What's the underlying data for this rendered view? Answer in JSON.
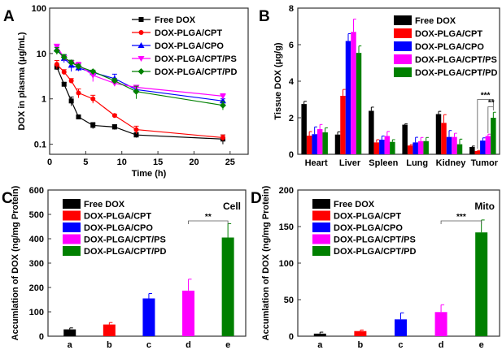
{
  "colors": {
    "Free DOX": "#000000",
    "DOX-PLGA/CPT": "#ff0000",
    "DOX-PLGA/CPO": "#0000ff",
    "DOX-PLGA/CPT/PS": "#ff00ff",
    "DOX-PLGA/CPT/PD": "#008000"
  },
  "chart_data": [
    {
      "panel": "A",
      "type": "line",
      "xlabel": "Time (h)",
      "ylabel": "DOX in plasma (μg/mL)",
      "yscale": "log",
      "xlim": [
        0,
        27.5
      ],
      "ylim": [
        0.06,
        100
      ],
      "xticks": [
        0,
        5,
        10,
        15,
        20,
        25
      ],
      "yticks": [
        0.1,
        1,
        10,
        100
      ],
      "ytick_labels": [
        "0.1",
        "1",
        "10",
        "100"
      ],
      "legend": "top-right",
      "x": [
        1,
        2,
        3,
        4,
        6,
        9,
        12,
        24
      ],
      "series": [
        {
          "name": "Free DOX",
          "marker": "square",
          "values": [
            5.0,
            2.1,
            0.9,
            0.4,
            0.26,
            0.24,
            0.16,
            0.13
          ],
          "err": [
            0.6,
            0.2,
            0.2,
            0.03,
            0.04,
            0.03,
            0.02,
            0.03
          ]
        },
        {
          "name": "DOX-PLGA/CPT",
          "marker": "circle",
          "values": [
            5.8,
            3.9,
            2.5,
            1.35,
            1.0,
            0.43,
            0.21,
            0.14
          ],
          "err": [
            1.2,
            0.5,
            0.3,
            0.3,
            0.2,
            0.03,
            0.04,
            0.02
          ]
        },
        {
          "name": "DOX-PLGA/CPO",
          "marker": "triangle-up",
          "values": [
            12.5,
            7.8,
            5.5,
            4.8,
            3.8,
            2.8,
            1.6,
            0.9
          ],
          "err": [
            2,
            1.5,
            1.5,
            0.7,
            0.3,
            0.7,
            0.2,
            0.1
          ]
        },
        {
          "name": "DOX-PLGA/CPT/PS",
          "marker": "triangle-down",
          "values": [
            14.5,
            8.0,
            6.3,
            5.6,
            3.3,
            2.2,
            1.8,
            1.15
          ],
          "err": [
            1.5,
            1,
            0.8,
            0.8,
            0.9,
            0.3,
            0.2,
            0.15
          ]
        },
        {
          "name": "DOX-PLGA/CPT/PD",
          "marker": "diamond",
          "values": [
            11.5,
            8.3,
            6.3,
            5.2,
            4.0,
            2.5,
            1.45,
            0.72
          ],
          "err": [
            2,
            1.2,
            0.8,
            0.6,
            0.3,
            0.3,
            0.45,
            0.15
          ]
        }
      ]
    },
    {
      "panel": "B",
      "type": "bar",
      "ylabel": "Tissue DOX (μg/g)",
      "ylim": [
        0,
        8
      ],
      "yticks": [
        0,
        2,
        4,
        6,
        8
      ],
      "categories": [
        "Heart",
        "Liver",
        "Spleen",
        "Lung",
        "Kidney",
        "Tumor"
      ],
      "legend": "top-right",
      "series": [
        {
          "name": "Free DOX",
          "values": [
            2.75,
            1.08,
            2.38,
            1.62,
            2.2,
            0.4
          ],
          "err": [
            0.15,
            0.15,
            0.2,
            0.05,
            0.15,
            0.05
          ]
        },
        {
          "name": "DOX-PLGA/CPT",
          "values": [
            1.02,
            3.2,
            0.65,
            0.48,
            1.72,
            0.18
          ],
          "err": [
            0.22,
            0.35,
            0.15,
            0.05,
            0.45,
            0.03
          ]
        },
        {
          "name": "DOX-PLGA/CPO",
          "values": [
            1.1,
            6.2,
            0.8,
            0.65,
            0.95,
            0.75
          ],
          "err": [
            0.4,
            0.4,
            0.2,
            0.28,
            0.35,
            0.15
          ]
        },
        {
          "name": "DOX-PLGA/CPT/PS",
          "values": [
            1.38,
            6.7,
            1.0,
            0.72,
            0.95,
            1.0
          ],
          "err": [
            0.25,
            0.7,
            0.25,
            0.2,
            0.2,
            0.1
          ]
        },
        {
          "name": "DOX-PLGA/CPT/PD",
          "values": [
            1.2,
            5.55,
            0.68,
            0.72,
            0.55,
            2.0
          ],
          "err": [
            0.25,
            0.38,
            0.12,
            0.2,
            0.28,
            0.3
          ]
        }
      ],
      "annotations": [
        {
          "text": "***",
          "between": [
            "DOX-PLGA/CPT",
            "DOX-PLGA/CPT/PD"
          ],
          "category": "Tumor"
        },
        {
          "text": "**",
          "between": [
            "DOX-PLGA/CPT/PS",
            "DOX-PLGA/CPT/PD"
          ],
          "category": "Tumor"
        }
      ]
    },
    {
      "panel": "C",
      "type": "bar",
      "ylabel": "Accumlation of DOX (ng/mg Protein)",
      "ylim": [
        0,
        600
      ],
      "yticks": [
        0,
        100,
        200,
        300,
        400,
        500,
        600
      ],
      "categories": [
        "a",
        "b",
        "c",
        "d",
        "e"
      ],
      "label": "Cell",
      "legend": "top-left",
      "series": [
        {
          "names": [
            "Free DOX",
            "DOX-PLGA/CPT",
            "DOX-PLGA/CPO",
            "DOX-PLGA/CPT/PS",
            "DOX-PLGA/CPT/PD"
          ],
          "values": [
            28,
            48,
            155,
            187,
            405
          ],
          "err": [
            6,
            8,
            20,
            47,
            57
          ]
        }
      ],
      "annotations": [
        {
          "text": "**",
          "between": [
            "d",
            "e"
          ]
        }
      ]
    },
    {
      "panel": "D",
      "type": "bar",
      "ylabel": "Accumlation of DOX (ng/mg Protein)",
      "ylim": [
        0,
        200
      ],
      "yticks": [
        0,
        50,
        100,
        150,
        200
      ],
      "categories": [
        "a",
        "b",
        "c",
        "d",
        "e"
      ],
      "label": "Mito",
      "legend": "top-left",
      "series": [
        {
          "names": [
            "Free DOX",
            "DOX-PLGA/CPT",
            "DOX-PLGA/CPO",
            "DOX-PLGA/CPT/PS",
            "DOX-PLGA/CPT/PD"
          ],
          "values": [
            3.5,
            7,
            23,
            33,
            142
          ],
          "err": [
            2,
            1.5,
            9,
            10,
            17
          ]
        }
      ],
      "annotations": [
        {
          "text": "***",
          "between": [
            "d",
            "e"
          ]
        }
      ]
    }
  ]
}
